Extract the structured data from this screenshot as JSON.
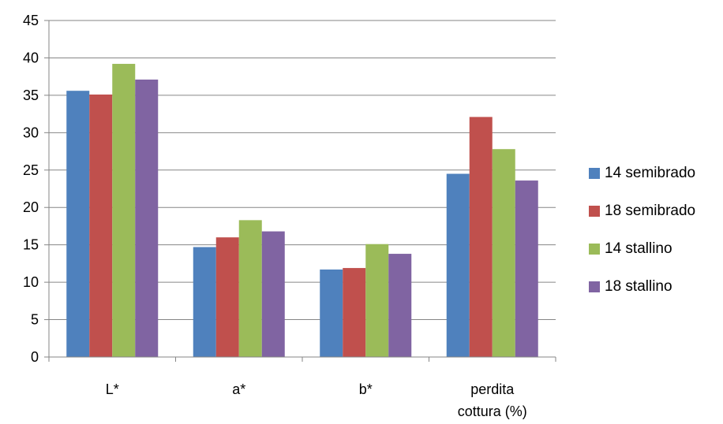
{
  "chart_data": {
    "type": "bar",
    "categories": [
      [
        "L*"
      ],
      [
        "a*"
      ],
      [
        "b*"
      ],
      [
        "perdita",
        "cottura (%)"
      ]
    ],
    "series": [
      {
        "name": "14 semibrado",
        "color": "#4f81bd",
        "values": [
          35.6,
          14.7,
          11.7,
          24.5
        ]
      },
      {
        "name": "18 semibrado",
        "color": "#c0504d",
        "values": [
          35.1,
          16.0,
          11.9,
          32.1
        ]
      },
      {
        "name": "14 stallino",
        "color": "#9bbb59",
        "values": [
          39.2,
          18.3,
          15.1,
          27.8
        ]
      },
      {
        "name": "18 stallino",
        "color": "#8064a2",
        "values": [
          37.1,
          16.8,
          13.8,
          23.6
        ]
      }
    ],
    "ylim": [
      0,
      45
    ],
    "yticks": [
      0,
      5,
      10,
      15,
      20,
      25,
      30,
      35,
      40,
      45
    ],
    "grid": true,
    "legend_position": "right"
  }
}
